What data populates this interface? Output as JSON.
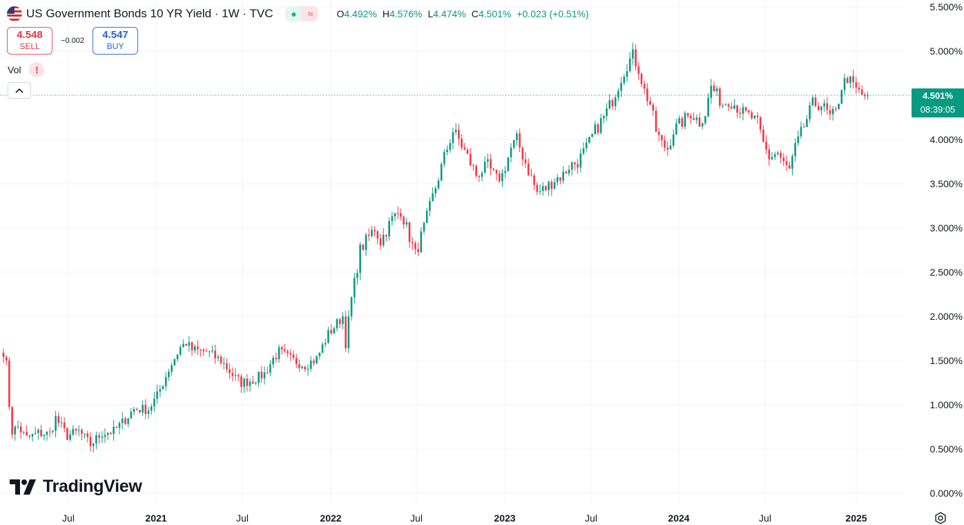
{
  "header": {
    "title": "US Government Bonds 10 YR Yield · 1W · TVC",
    "ohlc": {
      "o_label": "O",
      "o_value": "4.492%",
      "h_label": "H",
      "h_value": "4.576%",
      "l_label": "L",
      "l_value": "4.474%",
      "c_label": "C",
      "c_value": "4.501%",
      "change": "+0.023 (+0.51%)"
    },
    "pill_left_icon": "dot-icon",
    "pill_right_icon": "approx-icon"
  },
  "trade": {
    "sell_price": "4.548",
    "sell_label": "SELL",
    "spread": "−0.002",
    "buy_price": "4.547",
    "buy_label": "BUY"
  },
  "vol": {
    "label": "Vol",
    "warning": "!"
  },
  "logo": {
    "text": "TradingView"
  },
  "last_price": {
    "value": "4.501%",
    "countdown": "08:39:05"
  },
  "colors": {
    "up": "#089981",
    "down": "#f23645",
    "last_line": "#089981",
    "grid": "#f0f3fa"
  },
  "chart_data": {
    "type": "candlestick",
    "interval": "1W",
    "y_unit": "%",
    "ylim": [
      0,
      5.5
    ],
    "y_ticks": [
      "0.000%",
      "0.500%",
      "1.000%",
      "1.500%",
      "2.000%",
      "2.500%",
      "3.000%",
      "3.500%",
      "4.000%",
      "4.500%",
      "5.000%",
      "5.500%"
    ],
    "x_ticks": [
      "Jul",
      "2021",
      "Jul",
      "2022",
      "Jul",
      "2023",
      "Jul",
      "2024",
      "Jul",
      "2025"
    ],
    "last_value": 4.501,
    "anchors": [
      [
        0,
        1.6
      ],
      [
        1,
        1.45
      ],
      [
        2,
        1.0
      ],
      [
        3,
        0.7
      ],
      [
        5,
        0.75
      ],
      [
        8,
        0.62
      ],
      [
        12,
        0.68
      ],
      [
        16,
        0.67
      ],
      [
        18,
        0.85
      ],
      [
        22,
        0.65
      ],
      [
        26,
        0.7
      ],
      [
        30,
        0.55
      ],
      [
        34,
        0.68
      ],
      [
        38,
        0.7
      ],
      [
        41,
        0.8
      ],
      [
        45,
        0.95
      ],
      [
        50,
        0.95
      ],
      [
        53,
        1.1
      ],
      [
        57,
        1.4
      ],
      [
        61,
        1.65
      ],
      [
        63,
        1.7
      ],
      [
        65,
        1.62
      ],
      [
        70,
        1.6
      ],
      [
        75,
        1.5
      ],
      [
        80,
        1.3
      ],
      [
        82,
        1.25
      ],
      [
        86,
        1.28
      ],
      [
        90,
        1.35
      ],
      [
        93,
        1.52
      ],
      [
        95,
        1.6
      ],
      [
        100,
        1.5
      ],
      [
        104,
        1.45
      ],
      [
        108,
        1.52
      ],
      [
        112,
        1.8
      ],
      [
        115,
        1.92
      ],
      [
        117,
        2.0
      ],
      [
        118,
        1.7
      ],
      [
        120,
        2.2
      ],
      [
        123,
        2.75
      ],
      [
        125,
        2.85
      ],
      [
        128,
        3.0
      ],
      [
        130,
        2.85
      ],
      [
        134,
        3.1
      ],
      [
        137,
        3.2
      ],
      [
        140,
        2.9
      ],
      [
        142,
        2.7
      ],
      [
        145,
        3.0
      ],
      [
        148,
        3.35
      ],
      [
        152,
        3.8
      ],
      [
        155,
        4.1
      ],
      [
        157,
        4.0
      ],
      [
        160,
        3.8
      ],
      [
        163,
        3.6
      ],
      [
        167,
        3.7
      ],
      [
        170,
        3.55
      ],
      [
        172,
        3.6
      ],
      [
        175,
        3.9
      ],
      [
        177,
        4.0
      ],
      [
        181,
        3.65
      ],
      [
        184,
        3.4
      ],
      [
        187,
        3.45
      ],
      [
        190,
        3.55
      ],
      [
        193,
        3.6
      ],
      [
        195,
        3.7
      ],
      [
        198,
        3.75
      ],
      [
        201,
        3.9
      ],
      [
        204,
        4.1
      ],
      [
        207,
        4.25
      ],
      [
        210,
        4.45
      ],
      [
        213,
        4.7
      ],
      [
        215,
        4.85
      ],
      [
        217,
        4.95
      ],
      [
        219,
        4.8
      ],
      [
        221,
        4.55
      ],
      [
        223,
        4.4
      ],
      [
        225,
        4.1
      ],
      [
        227,
        3.95
      ],
      [
        229,
        3.9
      ],
      [
        231,
        4.1
      ],
      [
        234,
        4.2
      ],
      [
        237,
        4.3
      ],
      [
        240,
        4.2
      ],
      [
        242,
        4.3
      ],
      [
        244,
        4.6
      ],
      [
        246,
        4.5
      ],
      [
        248,
        4.4
      ],
      [
        250,
        4.45
      ],
      [
        252,
        4.4
      ],
      [
        255,
        4.3
      ],
      [
        258,
        4.25
      ],
      [
        260,
        4.18
      ],
      [
        262,
        3.95
      ],
      [
        264,
        3.8
      ],
      [
        267,
        3.85
      ],
      [
        269,
        3.72
      ],
      [
        271,
        3.65
      ],
      [
        273,
        3.9
      ],
      [
        276,
        4.15
      ],
      [
        279,
        4.4
      ],
      [
        282,
        4.4
      ],
      [
        285,
        4.25
      ],
      [
        287,
        4.3
      ],
      [
        289,
        4.6
      ],
      [
        291,
        4.7
      ],
      [
        293,
        4.6
      ],
      [
        296,
        4.5
      ],
      [
        298,
        4.5
      ]
    ]
  }
}
